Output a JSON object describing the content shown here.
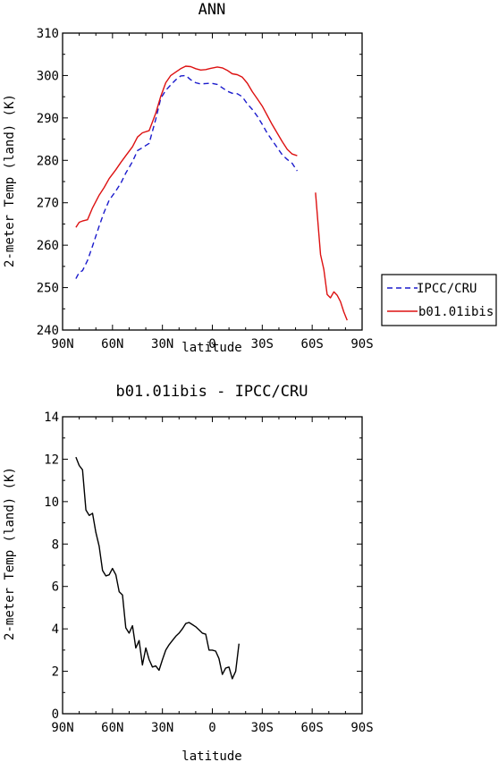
{
  "chart_data": [
    {
      "type": "line",
      "title": "ANN",
      "xlabel": "latitude",
      "ylabel": "2-meter Temp (land) (K)",
      "xlim": [
        90,
        -90
      ],
      "ylim": [
        240,
        310
      ],
      "x_ticks": [
        {
          "value": 90,
          "label": "90N"
        },
        {
          "value": 60,
          "label": "60N"
        },
        {
          "value": 30,
          "label": "30N"
        },
        {
          "value": 0,
          "label": "0"
        },
        {
          "value": -30,
          "label": "30S"
        },
        {
          "value": -60,
          "label": "60S"
        },
        {
          "value": -90,
          "label": "90S"
        }
      ],
      "y_ticks": [
        240,
        250,
        260,
        270,
        280,
        290,
        300,
        310
      ],
      "legend": {
        "position": "right",
        "entries": [
          {
            "name": "IPCC/CRU",
            "color": "#1a1acc",
            "dash": "dashed"
          },
          {
            "name": "b01.01ibis",
            "color": "#dd1111",
            "dash": "solid"
          }
        ]
      },
      "series": [
        {
          "name": "IPCC/CRU",
          "color": "#1a1acc",
          "dash": "dashed",
          "segments": [
            [
              [
                82,
                252.1
              ],
              [
                80,
                253.6
              ],
              [
                78,
                254.0
              ],
              [
                75,
                256.4
              ],
              [
                72,
                259.8
              ],
              [
                68,
                264.5
              ],
              [
                65,
                267.8
              ],
              [
                62,
                270.6
              ],
              [
                58,
                272.8
              ],
              [
                55,
                274.6
              ],
              [
                52,
                277.0
              ],
              [
                48,
                279.7
              ],
              [
                45,
                282.3
              ],
              [
                42,
                283.0
              ],
              [
                38,
                284.0
              ],
              [
                34,
                289.7
              ],
              [
                31,
                294.6
              ],
              [
                28,
                296.5
              ],
              [
                25,
                297.8
              ],
              [
                22,
                299.0
              ],
              [
                19,
                299.9
              ],
              [
                16,
                300.0
              ],
              [
                13,
                299.0
              ],
              [
                10,
                298.3
              ],
              [
                7,
                298.0
              ],
              [
                4,
                298.1
              ],
              [
                1,
                298.2
              ],
              [
                -3,
                297.9
              ],
              [
                -6,
                297.1
              ],
              [
                -9,
                296.3
              ],
              [
                -12,
                295.8
              ],
              [
                -15,
                295.7
              ],
              [
                -18,
                295.0
              ],
              [
                -21,
                293.3
              ],
              [
                -24,
                292.0
              ],
              [
                -27,
                290.4
              ],
              [
                -30,
                288.5
              ],
              [
                -33,
                286.4
              ],
              [
                -36,
                284.7
              ],
              [
                -39,
                283.0
              ],
              [
                -42,
                281.3
              ],
              [
                -45,
                280.2
              ],
              [
                -48,
                279.3
              ],
              [
                -51,
                277.5
              ]
            ]
          ]
        },
        {
          "name": "b01.01ibis",
          "color": "#dd1111",
          "dash": "solid",
          "segments": [
            [
              [
                82,
                264.2
              ],
              [
                80,
                265.4
              ],
              [
                78,
                265.7
              ],
              [
                75,
                266.0
              ],
              [
                72,
                268.8
              ],
              [
                68,
                271.8
              ],
              [
                65,
                273.6
              ],
              [
                62,
                275.7
              ],
              [
                58,
                277.8
              ],
              [
                55,
                279.5
              ],
              [
                52,
                281.1
              ],
              [
                48,
                283.2
              ],
              [
                45,
                285.5
              ],
              [
                42,
                286.5
              ],
              [
                38,
                287.0
              ],
              [
                34,
                291.1
              ],
              [
                31,
                295.1
              ],
              [
                28,
                298.3
              ],
              [
                25,
                300.0
              ],
              [
                22,
                300.8
              ],
              [
                19,
                301.6
              ],
              [
                16,
                302.2
              ],
              [
                13,
                302.1
              ],
              [
                10,
                301.6
              ],
              [
                7,
                301.3
              ],
              [
                4,
                301.4
              ],
              [
                1,
                301.7
              ],
              [
                -3,
                302.0
              ],
              [
                -6,
                301.8
              ],
              [
                -9,
                301.2
              ],
              [
                -12,
                300.4
              ],
              [
                -15,
                300.2
              ],
              [
                -18,
                299.6
              ],
              [
                -21,
                298.2
              ],
              [
                -24,
                296.2
              ],
              [
                -27,
                294.5
              ],
              [
                -30,
                292.8
              ],
              [
                -33,
                290.6
              ],
              [
                -36,
                288.4
              ],
              [
                -39,
                286.4
              ],
              [
                -42,
                284.4
              ],
              [
                -45,
                282.6
              ],
              [
                -48,
                281.5
              ],
              [
                -51,
                281.1
              ]
            ],
            [
              [
                -62,
                272.4
              ],
              [
                -65,
                257.8
              ],
              [
                -67,
                254.3
              ],
              [
                -69,
                248.4
              ],
              [
                -71,
                247.6
              ],
              [
                -73,
                249.0
              ],
              [
                -75,
                248.2
              ],
              [
                -77,
                246.7
              ],
              [
                -79,
                244.3
              ],
              [
                -81,
                242.3
              ]
            ]
          ]
        }
      ]
    },
    {
      "type": "line",
      "title": "b01.01ibis - IPCC/CRU",
      "xlabel": "latitude",
      "ylabel": "2-meter Temp (land) (K)",
      "xlim": [
        90,
        -90
      ],
      "ylim": [
        0,
        14
      ],
      "x_ticks": [
        {
          "value": 90,
          "label": "90N"
        },
        {
          "value": 60,
          "label": "60N"
        },
        {
          "value": 30,
          "label": "30N"
        },
        {
          "value": 0,
          "label": "0"
        },
        {
          "value": -30,
          "label": "30S"
        },
        {
          "value": -60,
          "label": "60S"
        },
        {
          "value": -90,
          "label": "90S"
        }
      ],
      "y_ticks": [
        0,
        2,
        4,
        6,
        8,
        10,
        12,
        14
      ],
      "series": [
        {
          "color": "#000000",
          "dash": "solid",
          "segments": [
            [
              [
                82,
                12.1
              ],
              [
                80,
                11.7
              ],
              [
                78,
                11.5
              ],
              [
                76,
                9.6
              ],
              [
                74,
                9.35
              ],
              [
                72,
                9.45
              ],
              [
                70,
                8.55
              ],
              [
                68,
                7.9
              ],
              [
                66,
                6.75
              ],
              [
                64,
                6.5
              ],
              [
                62,
                6.55
              ],
              [
                60,
                6.85
              ],
              [
                58,
                6.55
              ],
              [
                56,
                5.75
              ],
              [
                54,
                5.6
              ],
              [
                52,
                4.05
              ],
              [
                50,
                3.8
              ],
              [
                48,
                4.15
              ],
              [
                46,
                3.1
              ],
              [
                44,
                3.45
              ],
              [
                42,
                2.3
              ],
              [
                40,
                3.1
              ],
              [
                38,
                2.55
              ],
              [
                36,
                2.2
              ],
              [
                34,
                2.25
              ],
              [
                32,
                2.05
              ],
              [
                30,
                2.55
              ],
              [
                28,
                3.0
              ],
              [
                26,
                3.25
              ],
              [
                24,
                3.45
              ],
              [
                22,
                3.65
              ],
              [
                20,
                3.8
              ],
              [
                18,
                4.0
              ],
              [
                16,
                4.25
              ],
              [
                14,
                4.3
              ],
              [
                12,
                4.2
              ],
              [
                10,
                4.1
              ],
              [
                8,
                3.95
              ],
              [
                6,
                3.8
              ],
              [
                4,
                3.75
              ],
              [
                2,
                3.0
              ],
              [
                0,
                3.0
              ],
              [
                -2,
                2.95
              ],
              [
                -4,
                2.6
              ],
              [
                -6,
                1.85
              ],
              [
                -8,
                2.15
              ],
              [
                -10,
                2.2
              ],
              [
                -12,
                1.65
              ],
              [
                -14,
                2.0
              ],
              [
                -16,
                3.3
              ]
            ]
          ]
        }
      ]
    }
  ]
}
